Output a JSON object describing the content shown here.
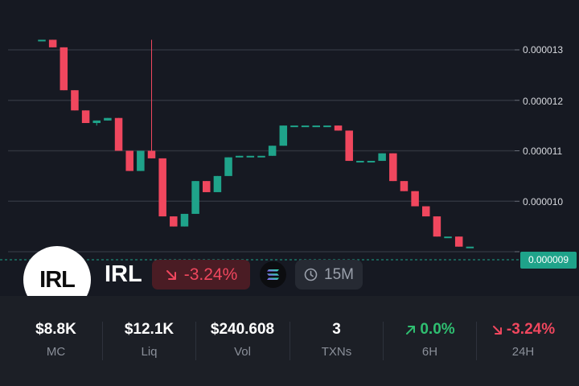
{
  "chart_data": {
    "type": "candlestick",
    "price_scale": {
      "ticks": [
        "0.000013",
        "0.000012",
        "0.000011",
        "0.000010",
        "0.000009"
      ],
      "tick_values": [
        1.3e-05,
        1.2e-05,
        1.1e-05,
        1e-05,
        9e-06
      ],
      "ylim": [
        8.8e-06,
        1.32e-05
      ]
    },
    "current_price": "0.000009",
    "current_price_value": 9e-06,
    "colors": {
      "up": "#1fa38a",
      "down": "#f0475e",
      "grid": "#2f333d",
      "price_line": "#1fa38a"
    },
    "candles": [
      {
        "o": 1.32e-05,
        "c": 1.32e-05,
        "h": 1.32e-05,
        "l": 1.32e-05
      },
      {
        "o": 1.32e-05,
        "c": 1.305e-05,
        "h": 1.32e-05,
        "l": 1.305e-05
      },
      {
        "o": 1.305e-05,
        "c": 1.22e-05,
        "h": 1.305e-05,
        "l": 1.22e-05
      },
      {
        "o": 1.22e-05,
        "c": 1.18e-05,
        "h": 1.22e-05,
        "l": 1.18e-05
      },
      {
        "o": 1.18e-05,
        "c": 1.155e-05,
        "h": 1.18e-05,
        "l": 1.155e-05
      },
      {
        "o": 1.155e-05,
        "c": 1.16e-05,
        "h": 1.16e-05,
        "l": 1.15e-05
      },
      {
        "o": 1.16e-05,
        "c": 1.165e-05,
        "h": 1.165e-05,
        "l": 1.16e-05
      },
      {
        "o": 1.165e-05,
        "c": 1.1e-05,
        "h": 1.165e-05,
        "l": 1.1e-05
      },
      {
        "o": 1.1e-05,
        "c": 1.06e-05,
        "h": 1.1e-05,
        "l": 1.06e-05
      },
      {
        "o": 1.06e-05,
        "c": 1.1e-05,
        "h": 1.1e-05,
        "l": 1.06e-05
      },
      {
        "o": 1.1e-05,
        "c": 1.085e-05,
        "h": 1.32e-05,
        "l": 1.085e-05
      },
      {
        "o": 1.085e-05,
        "c": 9.7e-06,
        "h": 1.085e-05,
        "l": 9.7e-06
      },
      {
        "o": 9.7e-06,
        "c": 9.5e-06,
        "h": 9.7e-06,
        "l": 9.5e-06
      },
      {
        "o": 9.5e-06,
        "c": 9.75e-06,
        "h": 9.75e-06,
        "l": 9.5e-06
      },
      {
        "o": 9.75e-06,
        "c": 1.04e-05,
        "h": 1.04e-05,
        "l": 9.75e-06
      },
      {
        "o": 1.04e-05,
        "c": 1.018e-05,
        "h": 1.04e-05,
        "l": 1.018e-05
      },
      {
        "o": 1.018e-05,
        "c": 1.05e-05,
        "h": 1.05e-05,
        "l": 1.018e-05
      },
      {
        "o": 1.05e-05,
        "c": 1.087e-05,
        "h": 1.087e-05,
        "l": 1.05e-05
      },
      {
        "o": 1.087e-05,
        "c": 1.09e-05,
        "h": 1.09e-05,
        "l": 1.087e-05
      },
      {
        "o": 1.09e-05,
        "c": 1.09e-05,
        "h": 1.09e-05,
        "l": 1.09e-05
      },
      {
        "o": 1.09e-05,
        "c": 1.09e-05,
        "h": 1.09e-05,
        "l": 1.09e-05
      },
      {
        "o": 1.09e-05,
        "c": 1.11e-05,
        "h": 1.11e-05,
        "l": 1.09e-05
      },
      {
        "o": 1.11e-05,
        "c": 1.15e-05,
        "h": 1.15e-05,
        "l": 1.11e-05
      },
      {
        "o": 1.15e-05,
        "c": 1.15e-05,
        "h": 1.15e-05,
        "l": 1.15e-05
      },
      {
        "o": 1.15e-05,
        "c": 1.15e-05,
        "h": 1.15e-05,
        "l": 1.15e-05
      },
      {
        "o": 1.15e-05,
        "c": 1.15e-05,
        "h": 1.15e-05,
        "l": 1.15e-05
      },
      {
        "o": 1.15e-05,
        "c": 1.15e-05,
        "h": 1.15e-05,
        "l": 1.15e-05
      },
      {
        "o": 1.15e-05,
        "c": 1.14e-05,
        "h": 1.15e-05,
        "l": 1.14e-05
      },
      {
        "o": 1.14e-05,
        "c": 1.08e-05,
        "h": 1.14e-05,
        "l": 1.08e-05
      },
      {
        "o": 1.08e-05,
        "c": 1.08e-05,
        "h": 1.08e-05,
        "l": 1.08e-05
      },
      {
        "o": 1.08e-05,
        "c": 1.08e-05,
        "h": 1.08e-05,
        "l": 1.08e-05
      },
      {
        "o": 1.08e-05,
        "c": 1.095e-05,
        "h": 1.095e-05,
        "l": 1.08e-05
      },
      {
        "o": 1.095e-05,
        "c": 1.04e-05,
        "h": 1.095e-05,
        "l": 1.04e-05
      },
      {
        "o": 1.04e-05,
        "c": 1.02e-05,
        "h": 1.04e-05,
        "l": 1.02e-05
      },
      {
        "o": 1.02e-05,
        "c": 9.9e-06,
        "h": 1.02e-05,
        "l": 9.9e-06
      },
      {
        "o": 9.9e-06,
        "c": 9.7e-06,
        "h": 9.9e-06,
        "l": 9.7e-06
      },
      {
        "o": 9.7e-06,
        "c": 9.3e-06,
        "h": 9.7e-06,
        "l": 9.3e-06
      },
      {
        "o": 9.3e-06,
        "c": 9.3e-06,
        "h": 9.3e-06,
        "l": 9.3e-06
      },
      {
        "o": 9.3e-06,
        "c": 9.1e-06,
        "h": 9.3e-06,
        "l": 9.1e-06
      },
      {
        "o": 9.1e-06,
        "c": 9.1e-06,
        "h": 9.1e-06,
        "l": 9.1e-06
      }
    ]
  },
  "token": {
    "avatar_text": "IRL",
    "ticker": "IRL",
    "change": "-3.24%",
    "change_icon": "arrow-down-right-icon",
    "chain_icon": "solana-icon",
    "interval": "15M",
    "interval_icon": "clock-icon"
  },
  "stats": [
    {
      "value": "$8.8K",
      "label": "MC"
    },
    {
      "value": "$12.1K",
      "label": "Liq"
    },
    {
      "value": "$240.608",
      "label": "Vol"
    },
    {
      "value": "3",
      "label": "TXNs"
    },
    {
      "value": "0.0%",
      "label": "6H",
      "direction": "up",
      "icon": "arrow-up-right-icon"
    },
    {
      "value": "-3.24%",
      "label": "24H",
      "direction": "down",
      "icon": "arrow-down-right-icon"
    }
  ]
}
